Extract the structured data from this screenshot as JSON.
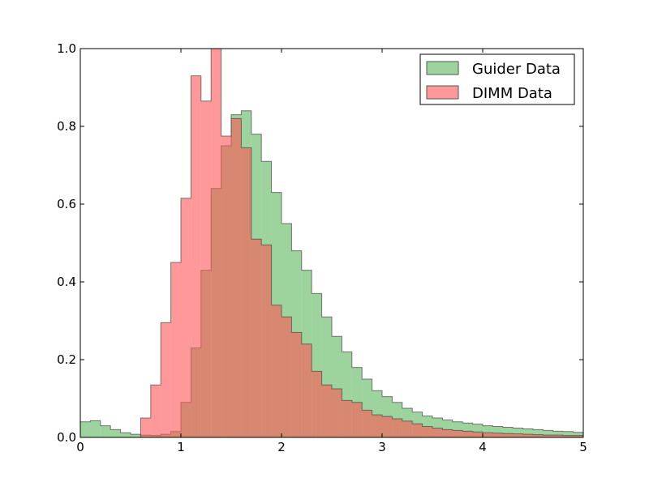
{
  "chart_data": {
    "type": "histogram",
    "title": "",
    "xlabel": "",
    "ylabel": "",
    "xlim": [
      0,
      5
    ],
    "ylim": [
      0,
      1.0
    ],
    "grid": false,
    "legend_position": "top-right",
    "bin_width": 0.1,
    "x_ticks": [
      "0",
      "1",
      "2",
      "3",
      "4",
      "5"
    ],
    "y_ticks": [
      "0.0",
      "0.2",
      "0.4",
      "0.6",
      "0.8",
      "1.0"
    ],
    "series": [
      {
        "name": "Guider Data",
        "color": "#4daf4a",
        "bin_edges": [
          0.0,
          0.1,
          0.2,
          0.3,
          0.4,
          0.5,
          0.6,
          0.7,
          0.8,
          0.9,
          1.0,
          1.1,
          1.2,
          1.3,
          1.4,
          1.5,
          1.6,
          1.7,
          1.8,
          1.9,
          2.0,
          2.1,
          2.2,
          2.3,
          2.4,
          2.5,
          2.6,
          2.7,
          2.8,
          2.9,
          3.0,
          3.1,
          3.2,
          3.3,
          3.4,
          3.5,
          3.6,
          3.7,
          3.8,
          3.9,
          4.0,
          4.1,
          4.2,
          4.3,
          4.4,
          4.5,
          4.6,
          4.7,
          4.8,
          4.9,
          5.0
        ],
        "values": [
          0.04,
          0.043,
          0.03,
          0.02,
          0.012,
          0.008,
          0.006,
          0.005,
          0.008,
          0.015,
          0.09,
          0.23,
          0.43,
          0.64,
          0.75,
          0.83,
          0.84,
          0.78,
          0.71,
          0.63,
          0.55,
          0.48,
          0.43,
          0.37,
          0.31,
          0.26,
          0.22,
          0.18,
          0.15,
          0.12,
          0.105,
          0.09,
          0.075,
          0.065,
          0.055,
          0.05,
          0.045,
          0.04,
          0.037,
          0.034,
          0.03,
          0.028,
          0.026,
          0.024,
          0.022,
          0.02,
          0.018,
          0.016,
          0.015,
          0.013
        ]
      },
      {
        "name": "DIMM Data",
        "color": "#ff5555",
        "bin_edges": [
          0.6,
          0.7,
          0.8,
          0.9,
          1.0,
          1.1,
          1.2,
          1.3,
          1.4,
          1.5,
          1.6,
          1.7,
          1.8,
          1.9,
          2.0,
          2.1,
          2.2,
          2.3,
          2.4,
          2.5,
          2.6,
          2.7,
          2.8,
          2.9,
          3.0,
          3.1,
          3.2,
          3.3,
          3.4,
          3.5,
          3.6,
          3.7,
          3.8,
          3.9,
          4.0,
          4.1,
          4.2,
          4.3,
          4.4,
          4.5,
          4.6,
          4.7,
          4.8,
          4.9,
          5.0
        ],
        "values": [
          0.05,
          0.135,
          0.295,
          0.45,
          0.615,
          0.93,
          0.865,
          1.0,
          0.775,
          0.82,
          0.745,
          0.51,
          0.495,
          0.34,
          0.31,
          0.27,
          0.24,
          0.17,
          0.135,
          0.125,
          0.095,
          0.09,
          0.07,
          0.058,
          0.054,
          0.048,
          0.042,
          0.035,
          0.028,
          0.024,
          0.02,
          0.018,
          0.016,
          0.014,
          0.012,
          0.011,
          0.01,
          0.009,
          0.008,
          0.007,
          0.006,
          0.006,
          0.005,
          0.005
        ]
      }
    ]
  }
}
